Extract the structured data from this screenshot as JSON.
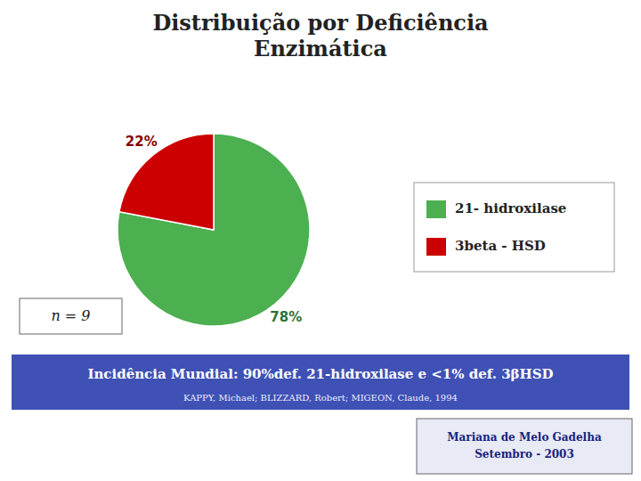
{
  "chart_data": {
    "type": "pie",
    "title": "Distribuição por Deficiência\nEnzimática",
    "categories": [
      "21- hidroxilase",
      "3beta - HSD"
    ],
    "values": [
      78,
      22
    ],
    "value_labels": [
      "78%",
      "22%"
    ],
    "colors": [
      "#4caf50",
      "#cc0000"
    ],
    "data_labels": true,
    "legend": "right",
    "annotations": [
      "n = 9",
      "Incidência Mundial: 90%def. 21-hidroxilase e <1% def. 3βHSD",
      "KAPPY, Michael; BLIZZARD, Robert; MIGEON, Claude, 1994",
      "Mariana de Melo Gadelha\nSetembro - 2003"
    ]
  }
}
